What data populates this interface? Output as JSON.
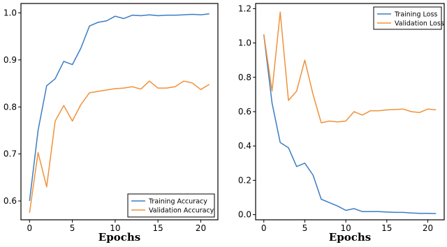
{
  "colors": {
    "training": "#3b7dc4",
    "validation": "#f0913a"
  },
  "chart_data": [
    {
      "type": "line",
      "title": "",
      "xlabel": "Epochs",
      "ylabel": "",
      "xlim": [
        -1,
        22
      ],
      "ylim": [
        0.56,
        1.02
      ],
      "xticks": [
        0,
        5,
        10,
        15,
        20
      ],
      "yticks": [
        0.6,
        0.7,
        0.8,
        0.9,
        1.0
      ],
      "ytick_labels": [
        "0.6",
        "0.7",
        "0.8",
        "0.9",
        "1.0"
      ],
      "grid": false,
      "legend_position": "bottom-right",
      "x": [
        0,
        1,
        2,
        3,
        4,
        5,
        6,
        7,
        8,
        9,
        10,
        11,
        12,
        13,
        14,
        15,
        16,
        17,
        18,
        19,
        20,
        21
      ],
      "series": [
        {
          "name": "Training Accuracy",
          "color_key": "training",
          "values": [
            0.6,
            0.75,
            0.845,
            0.86,
            0.897,
            0.89,
            0.925,
            0.972,
            0.98,
            0.983,
            0.993,
            0.988,
            0.995,
            0.994,
            0.996,
            0.994,
            0.995,
            0.995,
            0.996,
            0.997,
            0.996,
            0.998
          ]
        },
        {
          "name": "Validation Accuracy",
          "color_key": "validation",
          "values": [
            0.575,
            0.703,
            0.63,
            0.77,
            0.803,
            0.77,
            0.805,
            0.83,
            0.833,
            0.836,
            0.839,
            0.84,
            0.843,
            0.838,
            0.855,
            0.84,
            0.84,
            0.843,
            0.855,
            0.851,
            0.837,
            0.848
          ]
        }
      ]
    },
    {
      "type": "line",
      "title": "",
      "xlabel": "Epochs",
      "ylabel": "",
      "xlim": [
        -1,
        22
      ],
      "ylim": [
        -0.03,
        1.23
      ],
      "xticks": [
        0,
        5,
        10,
        15,
        20
      ],
      "yticks": [
        0.0,
        0.2,
        0.4,
        0.6,
        0.8,
        1.0,
        1.2
      ],
      "ytick_labels": [
        "0.0",
        "0.2",
        "0.4",
        "0.6",
        "0.8",
        "1.0",
        "1.2"
      ],
      "grid": false,
      "legend_position": "top-right",
      "x": [
        0,
        1,
        2,
        3,
        4,
        5,
        6,
        7,
        8,
        9,
        10,
        11,
        12,
        13,
        14,
        15,
        16,
        17,
        18,
        19,
        20,
        21
      ],
      "series": [
        {
          "name": "Training Loss",
          "color_key": "training",
          "values": [
            1.05,
            0.65,
            0.42,
            0.39,
            0.28,
            0.3,
            0.23,
            0.09,
            0.07,
            0.05,
            0.025,
            0.035,
            0.018,
            0.018,
            0.018,
            0.015,
            0.013,
            0.013,
            0.01,
            0.008,
            0.008,
            0.006
          ]
        },
        {
          "name": "Validation Loss",
          "color_key": "validation",
          "values": [
            1.05,
            0.72,
            1.18,
            0.665,
            0.72,
            0.9,
            0.7,
            0.535,
            0.545,
            0.54,
            0.545,
            0.6,
            0.58,
            0.605,
            0.605,
            0.61,
            0.612,
            0.615,
            0.6,
            0.595,
            0.615,
            0.61
          ]
        }
      ]
    }
  ]
}
